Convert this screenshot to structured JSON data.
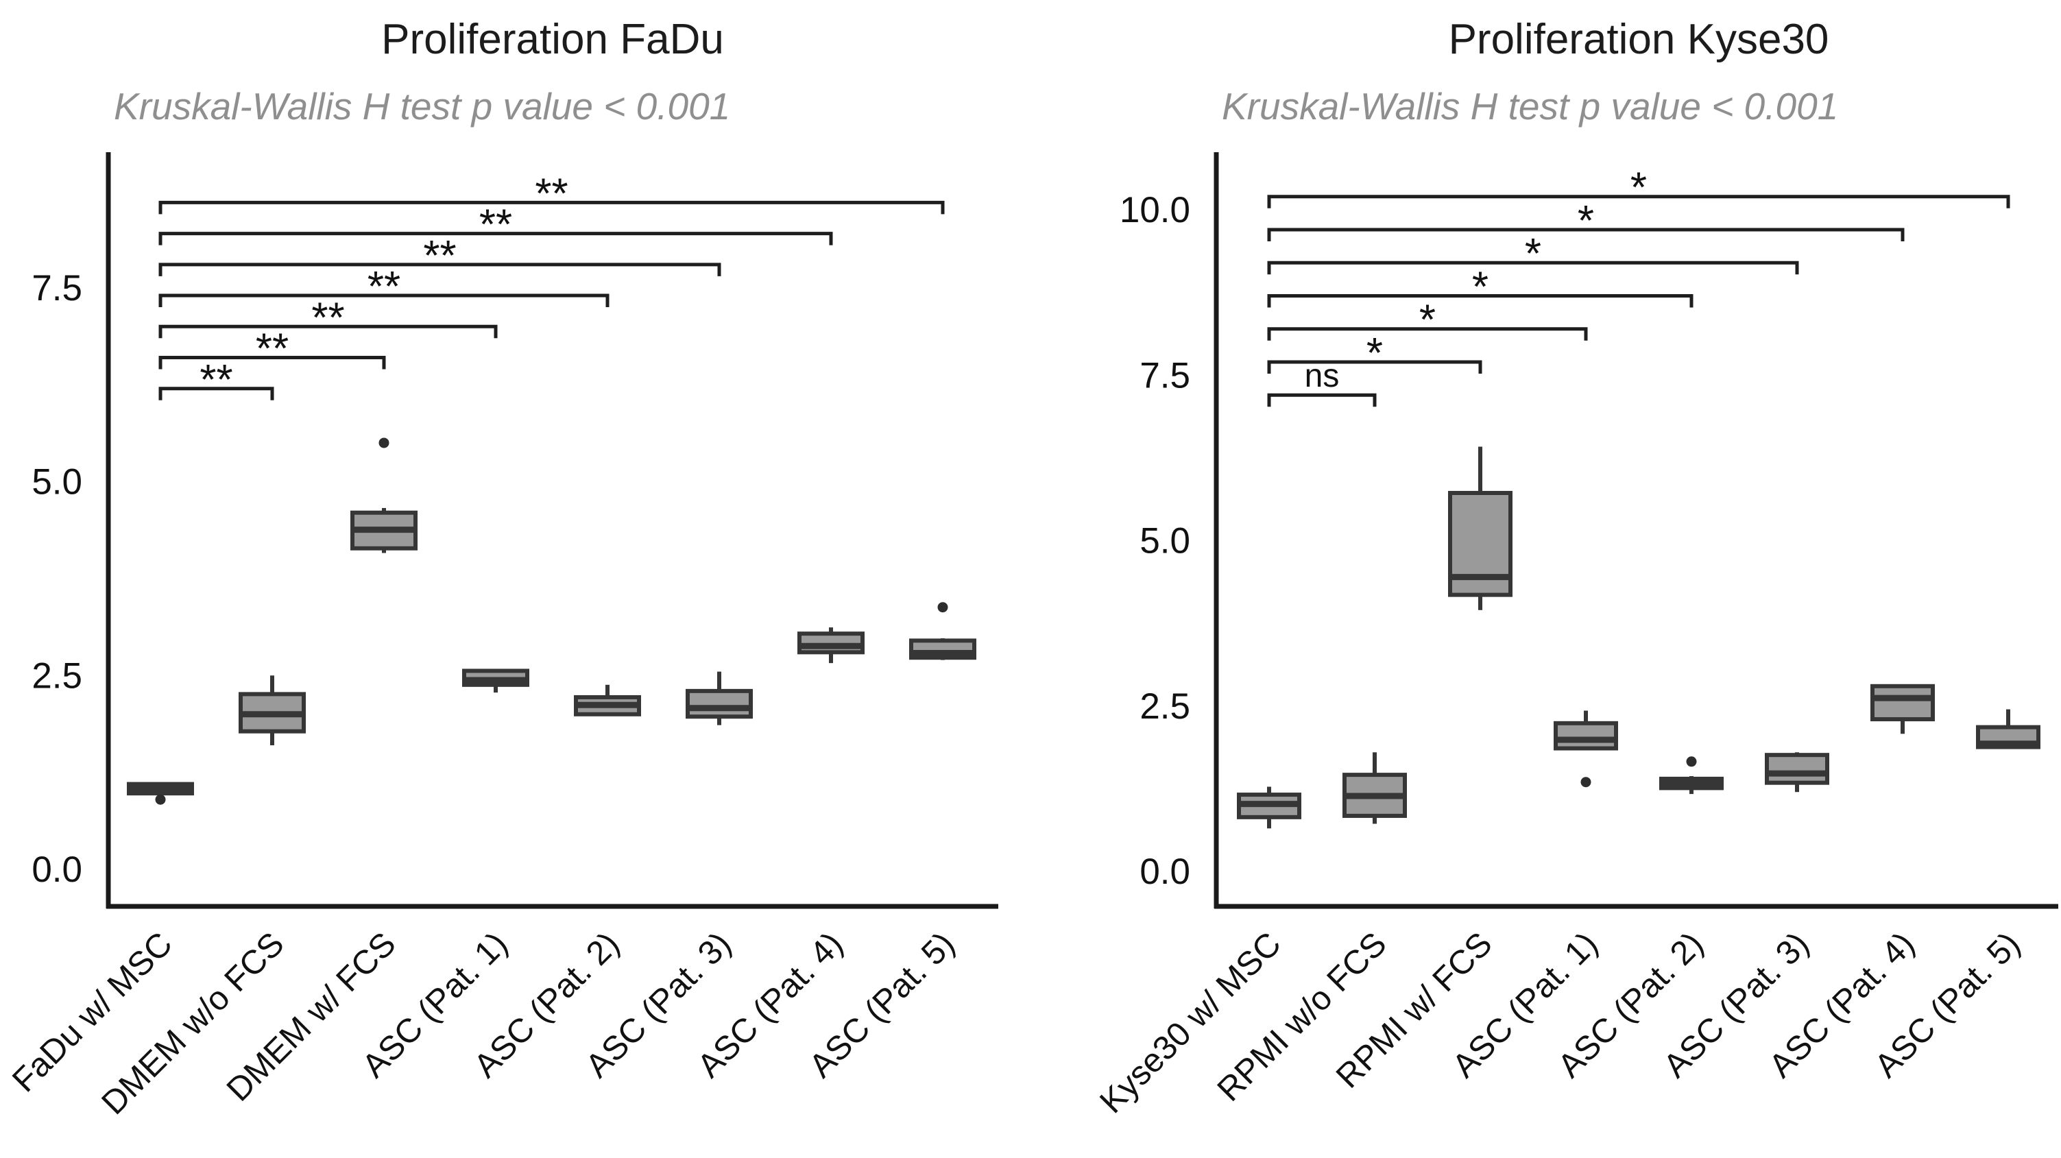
{
  "figure_title": "Proliferation boxplots FaDu / Kyse30",
  "style": {
    "background": "#ffffff",
    "box_fill": "#9a9a9a",
    "box_stroke": "#363636",
    "axis_color": "#1a1a1a",
    "bracket_color": "#1e1e1e",
    "title_color": "#1c1c1c",
    "subtitle_color": "#8f8f8f",
    "outlier_color": "#2d2d2d"
  },
  "chart_data": [
    {
      "type": "boxplot",
      "title": "Proliferation FaDu",
      "subtitle": "Kruskal-Wallis H test p value < 0.001",
      "xlabel": "",
      "ylabel": "",
      "ylim": [
        0,
        9.3
      ],
      "grid": false,
      "legend": "none",
      "yticks": [
        "0.0",
        "2.5",
        "5.0",
        "7.5"
      ],
      "ytick_values": [
        0.0,
        2.5,
        5.0,
        7.5
      ],
      "categories": [
        "FaDu w/ MSC",
        "DMEM w/o FCS",
        "DMEM w/ FCS",
        "ASC (Pat. 1)",
        "ASC (Pat. 2)",
        "ASC (Pat. 3)",
        "ASC (Pat. 4)",
        "ASC (Pat. 5)"
      ],
      "boxes": [
        {
          "category": "FaDu w/ MSC",
          "whisker_low": null,
          "q1": 0.98,
          "median": 1.04,
          "q3": 1.1,
          "whisker_high": null,
          "outliers": [
            0.9
          ]
        },
        {
          "category": "DMEM w/o FCS",
          "whisker_low": 1.6,
          "q1": 1.78,
          "median": 2.0,
          "q3": 2.26,
          "whisker_high": 2.5,
          "outliers": []
        },
        {
          "category": "DMEM w/ FCS",
          "whisker_low": 4.08,
          "q1": 4.14,
          "median": 4.38,
          "q3": 4.6,
          "whisker_high": 4.66,
          "outliers": [
            5.5
          ]
        },
        {
          "category": "ASC (Pat. 1)",
          "whisker_low": 2.28,
          "q1": 2.38,
          "median": 2.44,
          "q3": 2.56,
          "whisker_high": 2.58,
          "outliers": []
        },
        {
          "category": "ASC (Pat. 2)",
          "whisker_low": 1.98,
          "q1": 2.0,
          "median": 2.12,
          "q3": 2.22,
          "whisker_high": 2.38,
          "outliers": []
        },
        {
          "category": "ASC (Pat. 3)",
          "whisker_low": 1.86,
          "q1": 1.97,
          "median": 2.08,
          "q3": 2.3,
          "whisker_high": 2.55,
          "outliers": []
        },
        {
          "category": "ASC (Pat. 4)",
          "whisker_low": 2.66,
          "q1": 2.8,
          "median": 2.88,
          "q3": 3.04,
          "whisker_high": 3.12,
          "outliers": []
        },
        {
          "category": "ASC (Pat. 5)",
          "whisker_low": 2.7,
          "q1": 2.73,
          "median": 2.79,
          "q3": 2.95,
          "whisker_high": 2.98,
          "outliers": [
            3.38
          ]
        }
      ],
      "comparisons": [
        {
          "group1": 0,
          "group2": 1,
          "label": "**",
          "y": 6.2
        },
        {
          "group1": 0,
          "group2": 2,
          "label": "**",
          "y": 6.6
        },
        {
          "group1": 0,
          "group2": 3,
          "label": "**",
          "y": 7.0
        },
        {
          "group1": 0,
          "group2": 4,
          "label": "**",
          "y": 7.4
        },
        {
          "group1": 0,
          "group2": 5,
          "label": "**",
          "y": 7.8
        },
        {
          "group1": 0,
          "group2": 6,
          "label": "**",
          "y": 8.2
        },
        {
          "group1": 0,
          "group2": 7,
          "label": "**",
          "y": 8.6
        }
      ]
    },
    {
      "type": "boxplot",
      "title": "Proliferation Kyse30",
      "subtitle": "Kruskal-Wallis H test p value < 0.001",
      "xlabel": "",
      "ylabel": "",
      "ylim": [
        0,
        10.9
      ],
      "grid": false,
      "legend": "none",
      "yticks": [
        "0.0",
        "2.5",
        "5.0",
        "7.5",
        "10.0"
      ],
      "ytick_values": [
        0.0,
        2.5,
        5.0,
        7.5,
        10.0
      ],
      "categories": [
        "Kyse30 w/ MSC",
        "RPMI w/o FCS",
        "RPMI w/ FCS",
        "ASC (Pat. 1)",
        "ASC (Pat. 2)",
        "ASC (Pat. 3)",
        "ASC (Pat. 4)",
        "ASC (Pat. 5)"
      ],
      "boxes": [
        {
          "category": "Kyse30 w/ MSC",
          "whisker_low": 0.65,
          "q1": 0.82,
          "median": 1.02,
          "q3": 1.16,
          "whisker_high": 1.28,
          "outliers": []
        },
        {
          "category": "RPMI w/o FCS",
          "whisker_low": 0.72,
          "q1": 0.84,
          "median": 1.14,
          "q3": 1.46,
          "whisker_high": 1.8,
          "outliers": []
        },
        {
          "category": "RPMI w/ FCS",
          "whisker_low": 3.95,
          "q1": 4.18,
          "median": 4.45,
          "q3": 5.72,
          "whisker_high": 6.42,
          "outliers": []
        },
        {
          "category": "ASC (Pat. 1)",
          "whisker_low": 1.84,
          "q1": 1.86,
          "median": 1.99,
          "q3": 2.24,
          "whisker_high": 2.43,
          "outliers": [
            1.35
          ]
        },
        {
          "category": "ASC (Pat. 2)",
          "whisker_low": 1.17,
          "q1": 1.26,
          "median": 1.33,
          "q3": 1.4,
          "whisker_high": 1.44,
          "outliers": [
            1.66
          ]
        },
        {
          "category": "ASC (Pat. 3)",
          "whisker_low": 1.2,
          "q1": 1.34,
          "median": 1.48,
          "q3": 1.76,
          "whisker_high": 1.8,
          "outliers": []
        },
        {
          "category": "ASC (Pat. 4)",
          "whisker_low": 2.08,
          "q1": 2.3,
          "median": 2.62,
          "q3": 2.8,
          "whisker_high": 2.82,
          "outliers": []
        },
        {
          "category": "ASC (Pat. 5)",
          "whisker_low": 1.86,
          "q1": 1.88,
          "median": 1.93,
          "q3": 2.18,
          "whisker_high": 2.45,
          "outliers": []
        }
      ],
      "comparisons": [
        {
          "group1": 0,
          "group2": 1,
          "label": "ns",
          "y": 7.2
        },
        {
          "group1": 0,
          "group2": 2,
          "label": "*",
          "y": 7.7
        },
        {
          "group1": 0,
          "group2": 3,
          "label": "*",
          "y": 8.2
        },
        {
          "group1": 0,
          "group2": 4,
          "label": "*",
          "y": 8.7
        },
        {
          "group1": 0,
          "group2": 5,
          "label": "*",
          "y": 9.2
        },
        {
          "group1": 0,
          "group2": 6,
          "label": "*",
          "y": 9.7
        },
        {
          "group1": 0,
          "group2": 7,
          "label": "*",
          "y": 10.2
        }
      ]
    }
  ]
}
